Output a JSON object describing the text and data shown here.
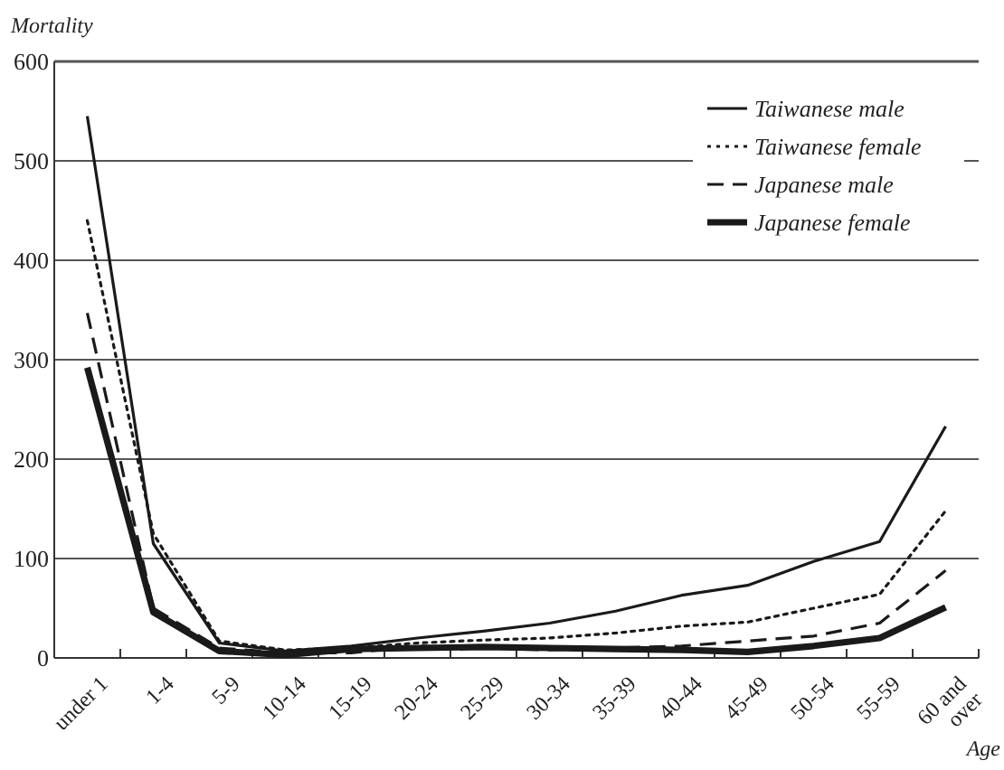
{
  "chart_data": {
    "type": "line",
    "ylabel": "Mortality",
    "xlabel": "Age",
    "categories": [
      "under 1",
      "1-4",
      "5-9",
      "10-14",
      "15-19",
      "20-24",
      "25-29",
      "30-34",
      "35-39",
      "40-44",
      "45-49",
      "50-54",
      "55-59",
      "60 and over"
    ],
    "series": [
      {
        "name": "Taiwanese male",
        "color": "#1a1a1a",
        "line_style": "solid",
        "values": [
          545,
          115,
          15,
          7,
          12,
          20,
          27,
          35,
          47,
          63,
          73,
          97,
          117,
          233
        ]
      },
      {
        "name": "Taiwanese female",
        "color": "#1a1a1a",
        "line_style": "dotted",
        "values": [
          440,
          125,
          17,
          8,
          10,
          15,
          18,
          20,
          25,
          32,
          36,
          50,
          64,
          148
        ]
      },
      {
        "name": "Japanese male",
        "color": "#1a1a1a",
        "line_style": "dashed",
        "values": [
          347,
          50,
          10,
          5,
          5,
          12,
          10,
          8,
          10,
          12,
          17,
          22,
          35,
          88
        ]
      },
      {
        "name": "Japanese female",
        "color": "#1a1a1a",
        "line_style": "solid",
        "values": [
          292,
          46,
          7,
          3,
          9,
          10,
          11,
          10,
          9,
          8,
          6,
          12,
          20,
          51
        ]
      }
    ],
    "ylim": [
      0,
      600
    ],
    "yticks": [
      0,
      100,
      200,
      300,
      400,
      500,
      600
    ],
    "grid": "y",
    "legend": "top right",
    "marker": "none"
  }
}
